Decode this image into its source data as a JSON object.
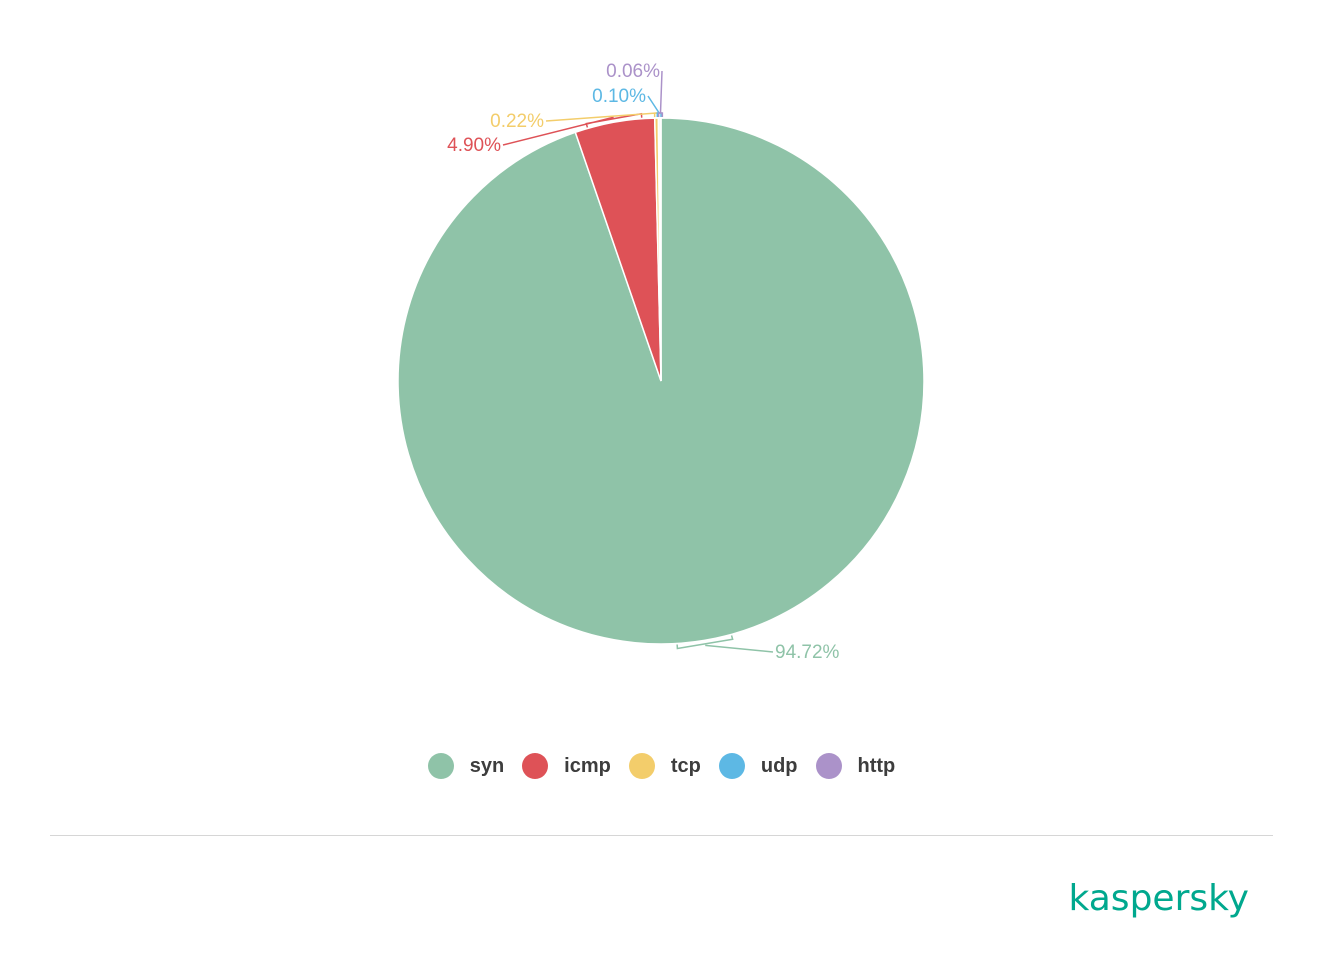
{
  "chart_data": {
    "type": "pie",
    "categories": [
      "syn",
      "icmp",
      "tcp",
      "udp",
      "http"
    ],
    "values": [
      94.72,
      4.9,
      0.22,
      0.1,
      0.06
    ],
    "labels": [
      "94.72%",
      "4.90%",
      "0.22%",
      "0.10%",
      "0.06%"
    ],
    "colors": [
      "#8fc3a8",
      "#de5257",
      "#f3cd6b",
      "#5db8e4",
      "#ab92c9"
    ],
    "title": "",
    "legend": "bottom",
    "start_angle": "12 o'clock",
    "direction": "clockwise"
  },
  "legend": {
    "items": [
      {
        "label": "syn",
        "color": "#8fc3a8"
      },
      {
        "label": "icmp",
        "color": "#de5257"
      },
      {
        "label": "tcp",
        "color": "#f3cd6b"
      },
      {
        "label": "udp",
        "color": "#5db8e4"
      },
      {
        "label": "http",
        "color": "#ab92c9"
      }
    ]
  },
  "brand": {
    "name": "kaspersky",
    "color": "#00a88e"
  }
}
